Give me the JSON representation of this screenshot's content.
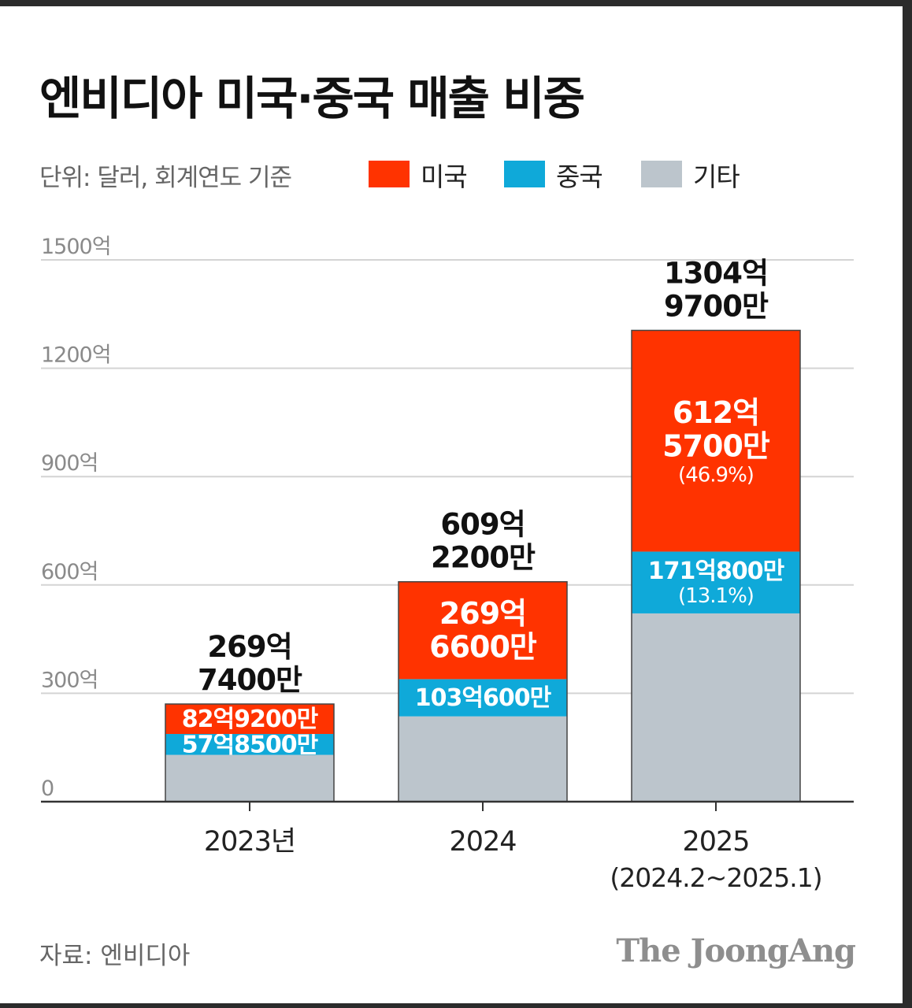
{
  "title": "엔비디아 미국·중국 매출 비중",
  "unit_note": "단위: 달러, 회계연도 기준",
  "legend": [
    {
      "label": "미국",
      "color": "#ff3300"
    },
    {
      "label": "중국",
      "color": "#0fa9d9"
    },
    {
      "label": "기타",
      "color": "#bcc5cc"
    }
  ],
  "source": "자료: 엔비디아",
  "brand": "The JoongAng",
  "chart_data": {
    "type": "bar",
    "stacked": true,
    "title": "엔비디아 미국·중국 매출 비중",
    "unit": "억 달러",
    "ylim": [
      0,
      1500
    ],
    "yticks": [
      {
        "value": 0,
        "label": "0"
      },
      {
        "value": 300,
        "label": "300억"
      },
      {
        "value": 600,
        "label": "600억"
      },
      {
        "value": 900,
        "label": "900억"
      },
      {
        "value": 1200,
        "label": "1200억"
      },
      {
        "value": 1500,
        "label": "1500억"
      }
    ],
    "grid": true,
    "categories": [
      {
        "label": "2023년",
        "sublabel": ""
      },
      {
        "label": "2024",
        "sublabel": ""
      },
      {
        "label": "2025",
        "sublabel": "(2024.2~2025.1)"
      }
    ],
    "series": [
      {
        "name": "기타",
        "color": "#bcc5cc",
        "values": [
          129.61,
          236.17,
          521.23
        ],
        "labels": [
          [
            "",
            ""
          ],
          [
            "",
            ""
          ],
          [
            "",
            ""
          ]
        ]
      },
      {
        "name": "중국",
        "color": "#0fa9d9",
        "values": [
          57.85,
          103.06,
          171.08
        ],
        "labels": [
          [
            "57억8500만",
            ""
          ],
          [
            "103억600만",
            ""
          ],
          [
            "171억800만",
            "(13.1%)"
          ]
        ]
      },
      {
        "name": "미국",
        "color": "#ff3300",
        "values": [
          82.92,
          269.66,
          612.57
        ],
        "labels": [
          [
            "82억9200만",
            ""
          ],
          [
            "269억",
            "6600만"
          ],
          [
            "612억",
            "5700만",
            "(46.9%)"
          ]
        ]
      }
    ],
    "totals": [
      {
        "value": 269.74,
        "lines": [
          "269억",
          "7400만"
        ]
      },
      {
        "value": 609.22,
        "lines": [
          "609억",
          "2200만"
        ]
      },
      {
        "value": 1304.97,
        "lines": [
          "1304억",
          "9700만"
        ]
      }
    ]
  }
}
